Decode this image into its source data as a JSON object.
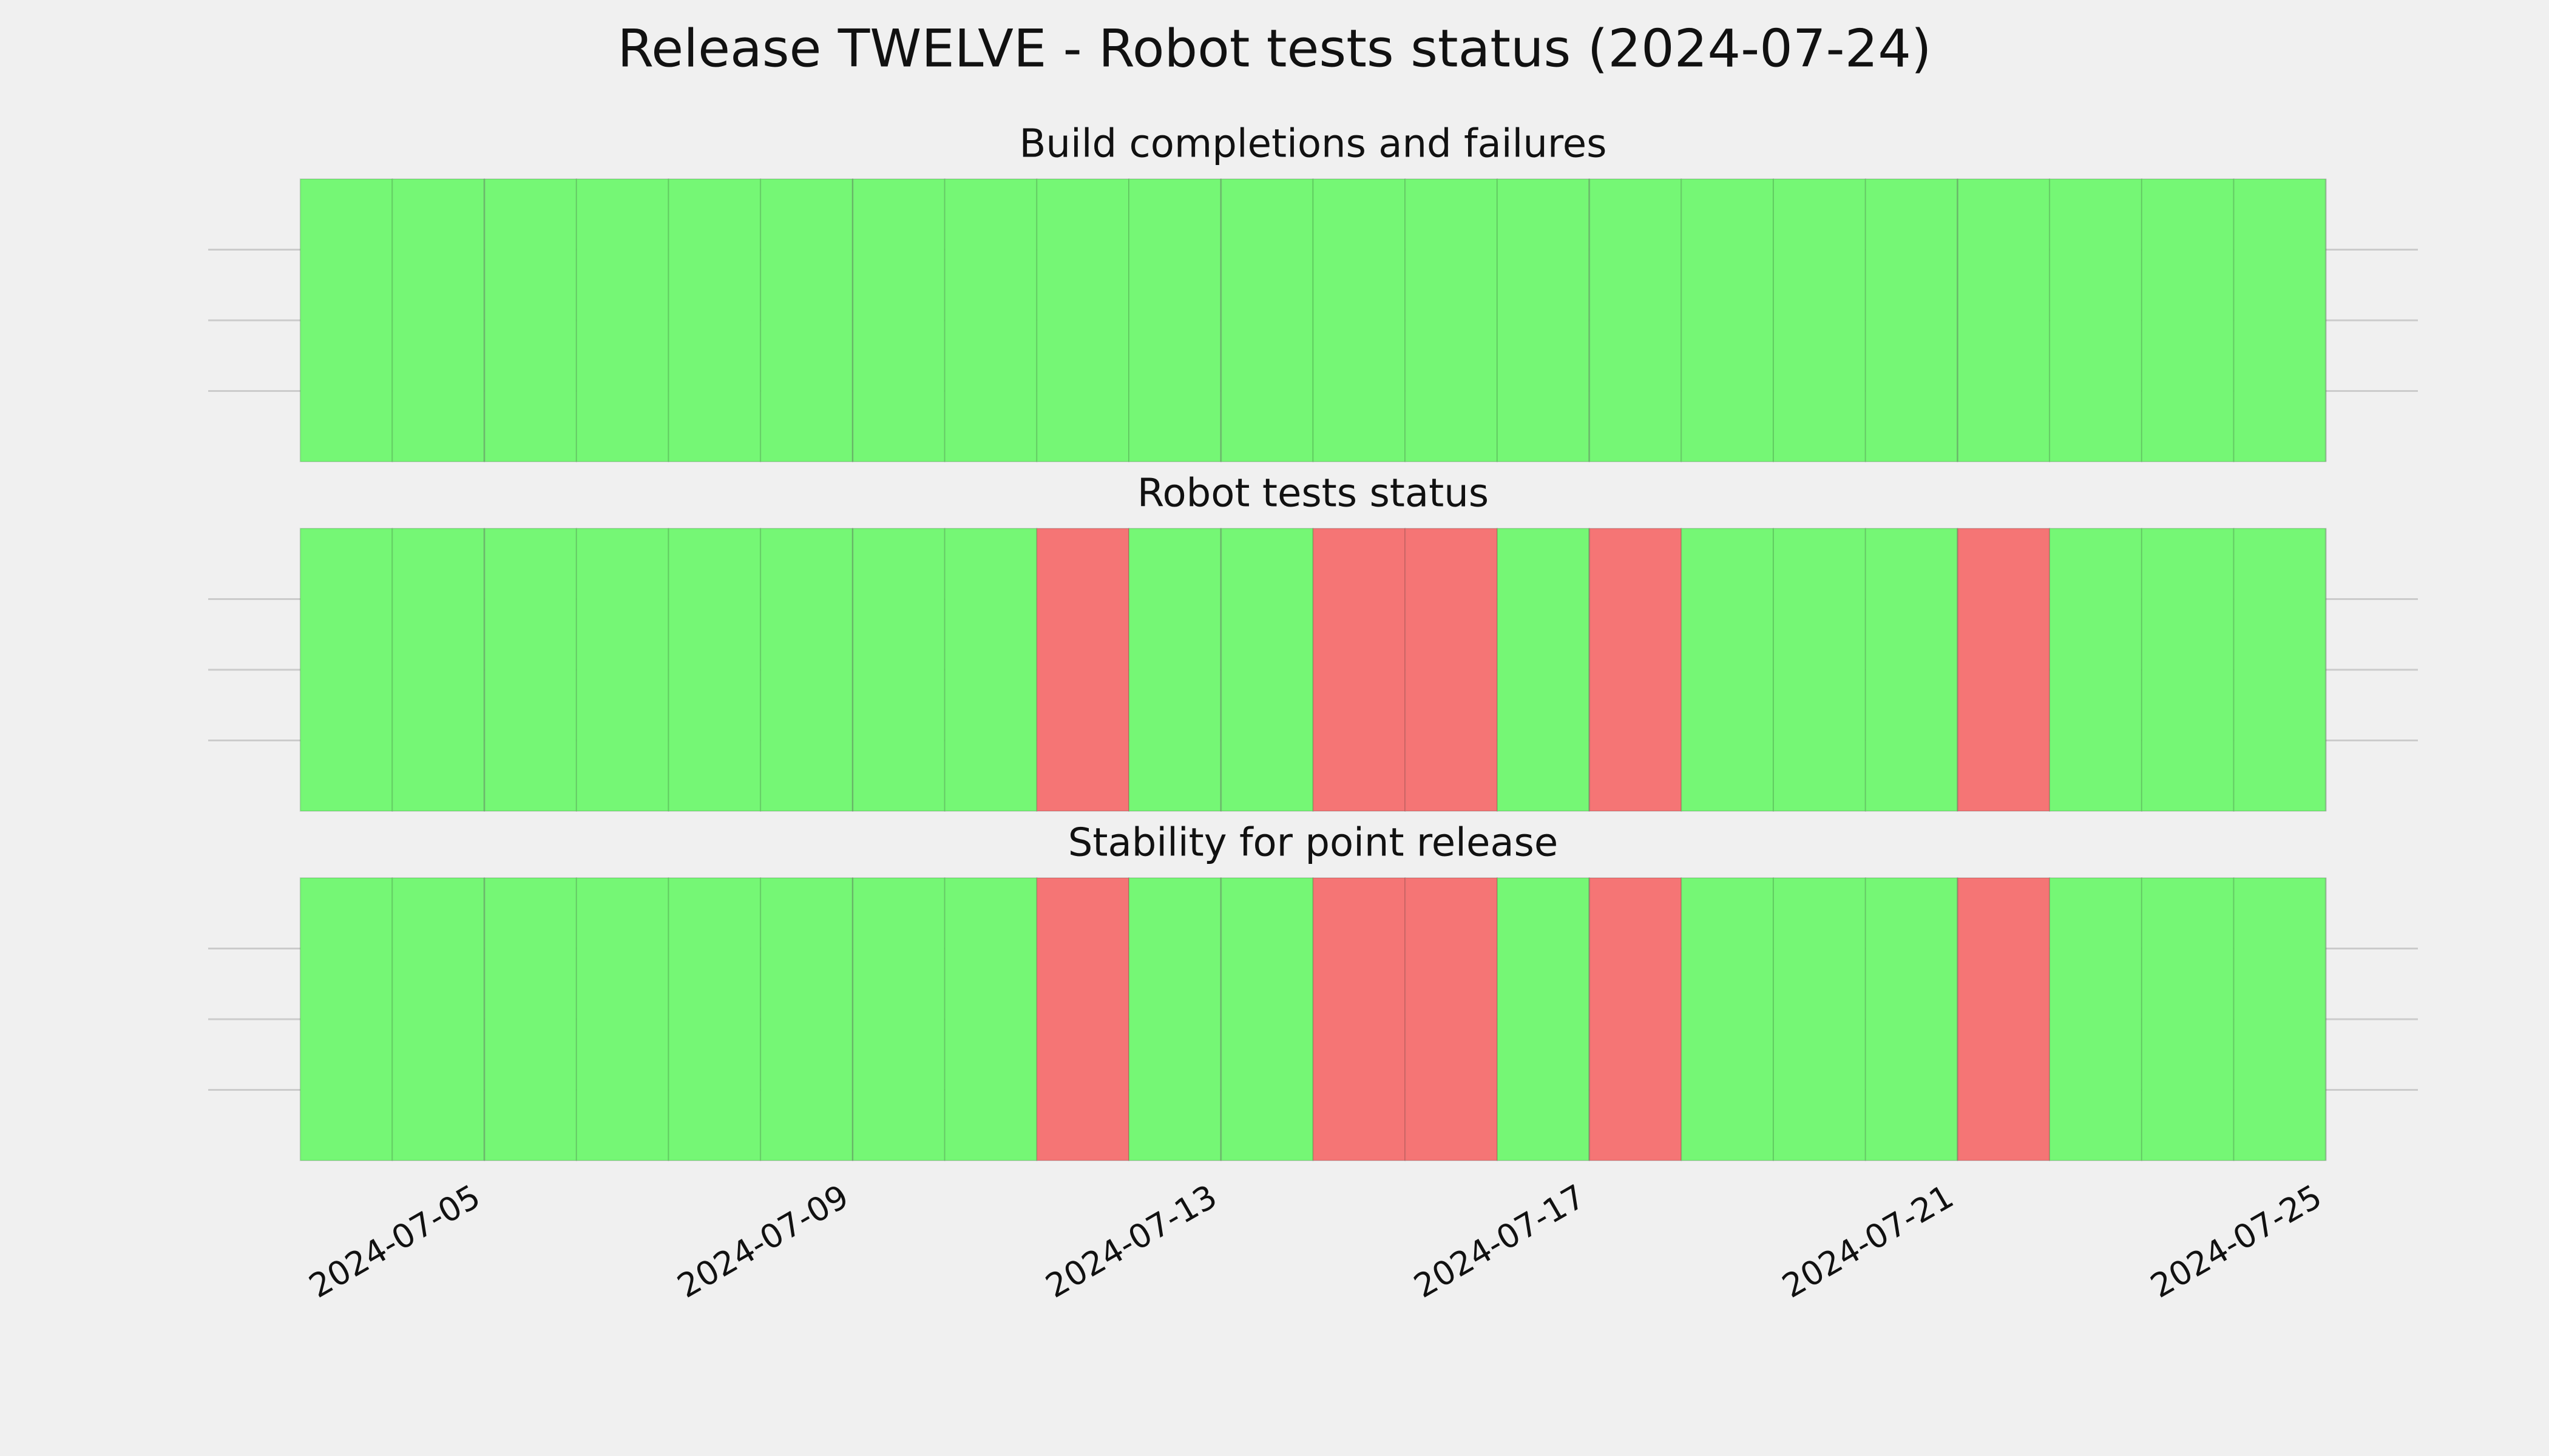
{
  "title": "Release TWELVE - Robot tests status (2024-07-24)",
  "chart_data": [
    {
      "type": "status-timeline",
      "title": "Build completions and failures",
      "x": [
        "2024-07-03",
        "2024-07-04",
        "2024-07-05",
        "2024-07-06",
        "2024-07-07",
        "2024-07-08",
        "2024-07-09",
        "2024-07-10",
        "2024-07-11",
        "2024-07-12",
        "2024-07-13",
        "2024-07-14",
        "2024-07-15",
        "2024-07-16",
        "2024-07-17",
        "2024-07-18",
        "2024-07-19",
        "2024-07-20",
        "2024-07-21",
        "2024-07-22",
        "2024-07-23",
        "2024-07-24"
      ],
      "values": [
        "pass",
        "pass",
        "pass",
        "pass",
        "pass",
        "pass",
        "pass",
        "pass",
        "pass",
        "pass",
        "pass",
        "pass",
        "pass",
        "pass",
        "pass",
        "pass",
        "pass",
        "pass",
        "pass",
        "pass",
        "pass",
        "pass"
      ],
      "colors": {
        "pass": "#75f775",
        "fail": "#f57575"
      },
      "xlim": [
        "2024-07-02",
        "2024-07-26"
      ],
      "xticks": [
        "2024-07-05",
        "2024-07-09",
        "2024-07-13",
        "2024-07-17",
        "2024-07-21",
        "2024-07-25"
      ],
      "ylim": [
        0,
        1
      ],
      "yticks": [
        0.25,
        0.5,
        0.75
      ],
      "grid": true
    },
    {
      "type": "status-timeline",
      "title": "Robot tests status",
      "x": [
        "2024-07-03",
        "2024-07-04",
        "2024-07-05",
        "2024-07-06",
        "2024-07-07",
        "2024-07-08",
        "2024-07-09",
        "2024-07-10",
        "2024-07-11",
        "2024-07-12",
        "2024-07-13",
        "2024-07-14",
        "2024-07-15",
        "2024-07-16",
        "2024-07-17",
        "2024-07-18",
        "2024-07-19",
        "2024-07-20",
        "2024-07-21",
        "2024-07-22",
        "2024-07-23",
        "2024-07-24"
      ],
      "values": [
        "pass",
        "pass",
        "pass",
        "pass",
        "pass",
        "pass",
        "pass",
        "pass",
        "fail",
        "pass",
        "pass",
        "fail",
        "fail",
        "pass",
        "fail",
        "pass",
        "pass",
        "pass",
        "fail",
        "pass",
        "pass",
        "pass"
      ],
      "colors": {
        "pass": "#75f775",
        "fail": "#f57575"
      },
      "xlim": [
        "2024-07-02",
        "2024-07-26"
      ],
      "xticks": [
        "2024-07-05",
        "2024-07-09",
        "2024-07-13",
        "2024-07-17",
        "2024-07-21",
        "2024-07-25"
      ],
      "ylim": [
        0,
        1
      ],
      "yticks": [
        0.25,
        0.5,
        0.75
      ],
      "grid": true
    },
    {
      "type": "status-timeline",
      "title": "Stability for point release",
      "x": [
        "2024-07-03",
        "2024-07-04",
        "2024-07-05",
        "2024-07-06",
        "2024-07-07",
        "2024-07-08",
        "2024-07-09",
        "2024-07-10",
        "2024-07-11",
        "2024-07-12",
        "2024-07-13",
        "2024-07-14",
        "2024-07-15",
        "2024-07-16",
        "2024-07-17",
        "2024-07-18",
        "2024-07-19",
        "2024-07-20",
        "2024-07-21",
        "2024-07-22",
        "2024-07-23",
        "2024-07-24"
      ],
      "values": [
        "pass",
        "pass",
        "pass",
        "pass",
        "pass",
        "pass",
        "pass",
        "pass",
        "fail",
        "pass",
        "pass",
        "fail",
        "fail",
        "pass",
        "fail",
        "pass",
        "pass",
        "pass",
        "fail",
        "pass",
        "pass",
        "pass"
      ],
      "colors": {
        "pass": "#75f775",
        "fail": "#f57575"
      },
      "xlim": [
        "2024-07-02",
        "2024-07-26"
      ],
      "xticks": [
        "2024-07-05",
        "2024-07-09",
        "2024-07-13",
        "2024-07-17",
        "2024-07-21",
        "2024-07-25"
      ],
      "ylim": [
        0,
        1
      ],
      "yticks": [
        0.25,
        0.5,
        0.75
      ],
      "grid": true,
      "show_xtick_labels": true
    }
  ]
}
